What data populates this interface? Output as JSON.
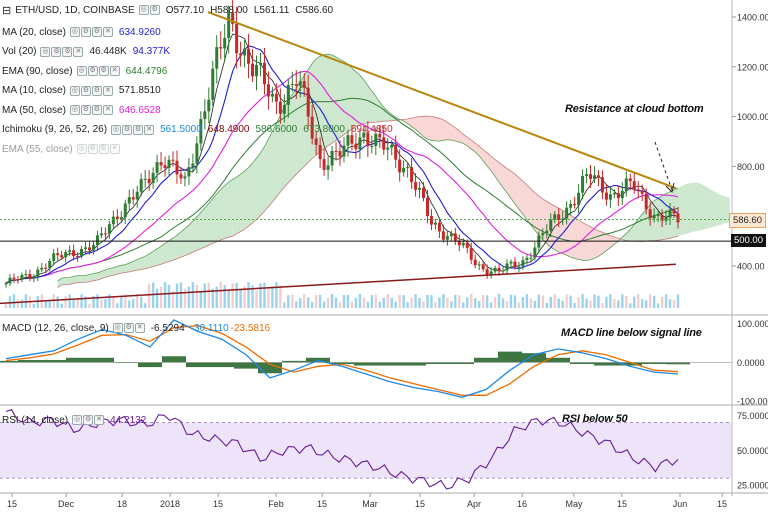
{
  "header": {
    "symbol": "ETH/USD, 1D, COINBASE",
    "open": "O577.10",
    "high": "H588.00",
    "low": "L561.11",
    "close": "C586.60"
  },
  "indicators": [
    {
      "name": "MA (20, close)",
      "values": [
        "634.9260"
      ],
      "colors": [
        "#1f1fd6"
      ]
    },
    {
      "name": "Vol (20)",
      "values": [
        "46.448K",
        "94.377K"
      ],
      "colors": [
        "#222222",
        "#1f1fd6"
      ]
    },
    {
      "name": "EMA (90, close)",
      "values": [
        "644.4796"
      ],
      "colors": [
        "#2e7d32"
      ]
    },
    {
      "name": "MA (10, close)",
      "values": [
        "571.8510"
      ],
      "colors": [
        "#222222"
      ]
    },
    {
      "name": "MA (50, close)",
      "values": [
        "646.6528"
      ],
      "colors": [
        "#e020e0"
      ]
    },
    {
      "name": "Ichimoku (9, 26, 52, 26)",
      "values": [
        "561.5000",
        "648.4900",
        "586.6000",
        "673.8000",
        "694.4850"
      ],
      "colors": [
        "#1e88e5",
        "#8b0000",
        "#2e7d32",
        "#3a7d3a",
        "#c62828"
      ]
    },
    {
      "name": "EMA (55, close)",
      "values": [],
      "colors": [],
      "dimmed": true
    }
  ],
  "macd_legend": {
    "name": "MACD (12, 26, close, 9)",
    "values": [
      "-6.5294",
      "-30.1110",
      "-23.5816"
    ],
    "colors": [
      "#222222",
      "#1e88e5",
      "#ef6c00"
    ]
  },
  "rsi_legend": {
    "name": "RSI (14, close)",
    "values": [
      "44.2132"
    ],
    "colors": [
      "#6a1b9a"
    ]
  },
  "annotations": {
    "resistance": "Resistance at cloud bottom",
    "macd": "MACD line below signal line",
    "rsi": "RSI below 50"
  },
  "price_tags": {
    "last": "586.60",
    "level": "500.00"
  },
  "colors": {
    "up": "#2e7d32",
    "down": "#c62828",
    "ma20": "#1f1fd6",
    "ma50": "#e020e0",
    "ema90": "#2e7d32",
    "ma10": "#222222",
    "cloud_bull": "#a5d6a7",
    "cloud_bear": "#f4b6b6",
    "volume": "#6ec1ea",
    "trend_res": "#b8860b",
    "trend_sup": "#8b1a1a",
    "macd_line": "#1e88e5",
    "signal_line": "#ef6c00",
    "hist": "#1b5e20",
    "rsi": "#6a1b9a",
    "rsi_band": "#e6d9f7"
  },
  "chart_data": [
    {
      "type": "line",
      "title": "ETH/USD, 1D, COINBASE",
      "x_ticks": [
        "15",
        "Dec",
        "18",
        "2018",
        "15",
        "Feb",
        "15",
        "Mar",
        "15",
        "Apr",
        "16",
        "May",
        "15",
        "Jun",
        "15"
      ],
      "y_ticks": [
        "1400.00",
        "1200.00",
        "1000.00",
        "800.00",
        "400.00"
      ],
      "ylim": [
        230,
        1450
      ],
      "series": [
        {
          "name": "ETH/USD close (approx. weekly)",
          "values": [
            330,
            360,
            420,
            460,
            480,
            620,
            700,
            850,
            720,
            1100,
            1380,
            1200,
            1050,
            1150,
            830,
            850,
            940,
            860,
            790,
            560,
            520,
            400,
            380,
            410,
            530,
            630,
            760,
            690,
            720,
            600,
            586
          ]
        }
      ],
      "annotations": [
        "Resistance at cloud bottom"
      ]
    },
    {
      "type": "line",
      "title": "MACD (12, 26, close, 9)",
      "y_ticks": [
        "100.0000",
        "0.0000",
        "-100.0000"
      ],
      "ylim": [
        -110,
        120
      ],
      "series": [
        {
          "name": "MACD",
          "values": [
            10,
            20,
            30,
            60,
            85,
            70,
            40,
            110,
            80,
            60,
            20,
            -40,
            -20,
            5,
            -10,
            -30,
            -50,
            -65,
            -75,
            -90,
            -70,
            -20,
            20,
            35,
            25,
            10,
            -10,
            -25,
            -30
          ]
        },
        {
          "name": "Signal",
          "values": [
            5,
            12,
            22,
            45,
            70,
            72,
            55,
            90,
            95,
            75,
            40,
            -5,
            -25,
            -10,
            -5,
            -20,
            -40,
            -55,
            -70,
            -85,
            -85,
            -55,
            -10,
            20,
            30,
            20,
            0,
            -20,
            -24
          ]
        }
      ],
      "annotations": [
        "MACD line below signal line"
      ]
    },
    {
      "type": "line",
      "title": "RSI (14, close)",
      "y_ticks": [
        "75.0000",
        "50.0000",
        "25.0000"
      ],
      "ylim": [
        20,
        82
      ],
      "series": [
        {
          "name": "RSI",
          "values": [
            78,
            70,
            72,
            65,
            70,
            72,
            68,
            76,
            62,
            58,
            55,
            44,
            50,
            52,
            46,
            42,
            38,
            32,
            28,
            24,
            30,
            45,
            65,
            72,
            70,
            62,
            55,
            45,
            38,
            44
          ]
        }
      ],
      "annotations": [
        "RSI below 50"
      ]
    }
  ]
}
